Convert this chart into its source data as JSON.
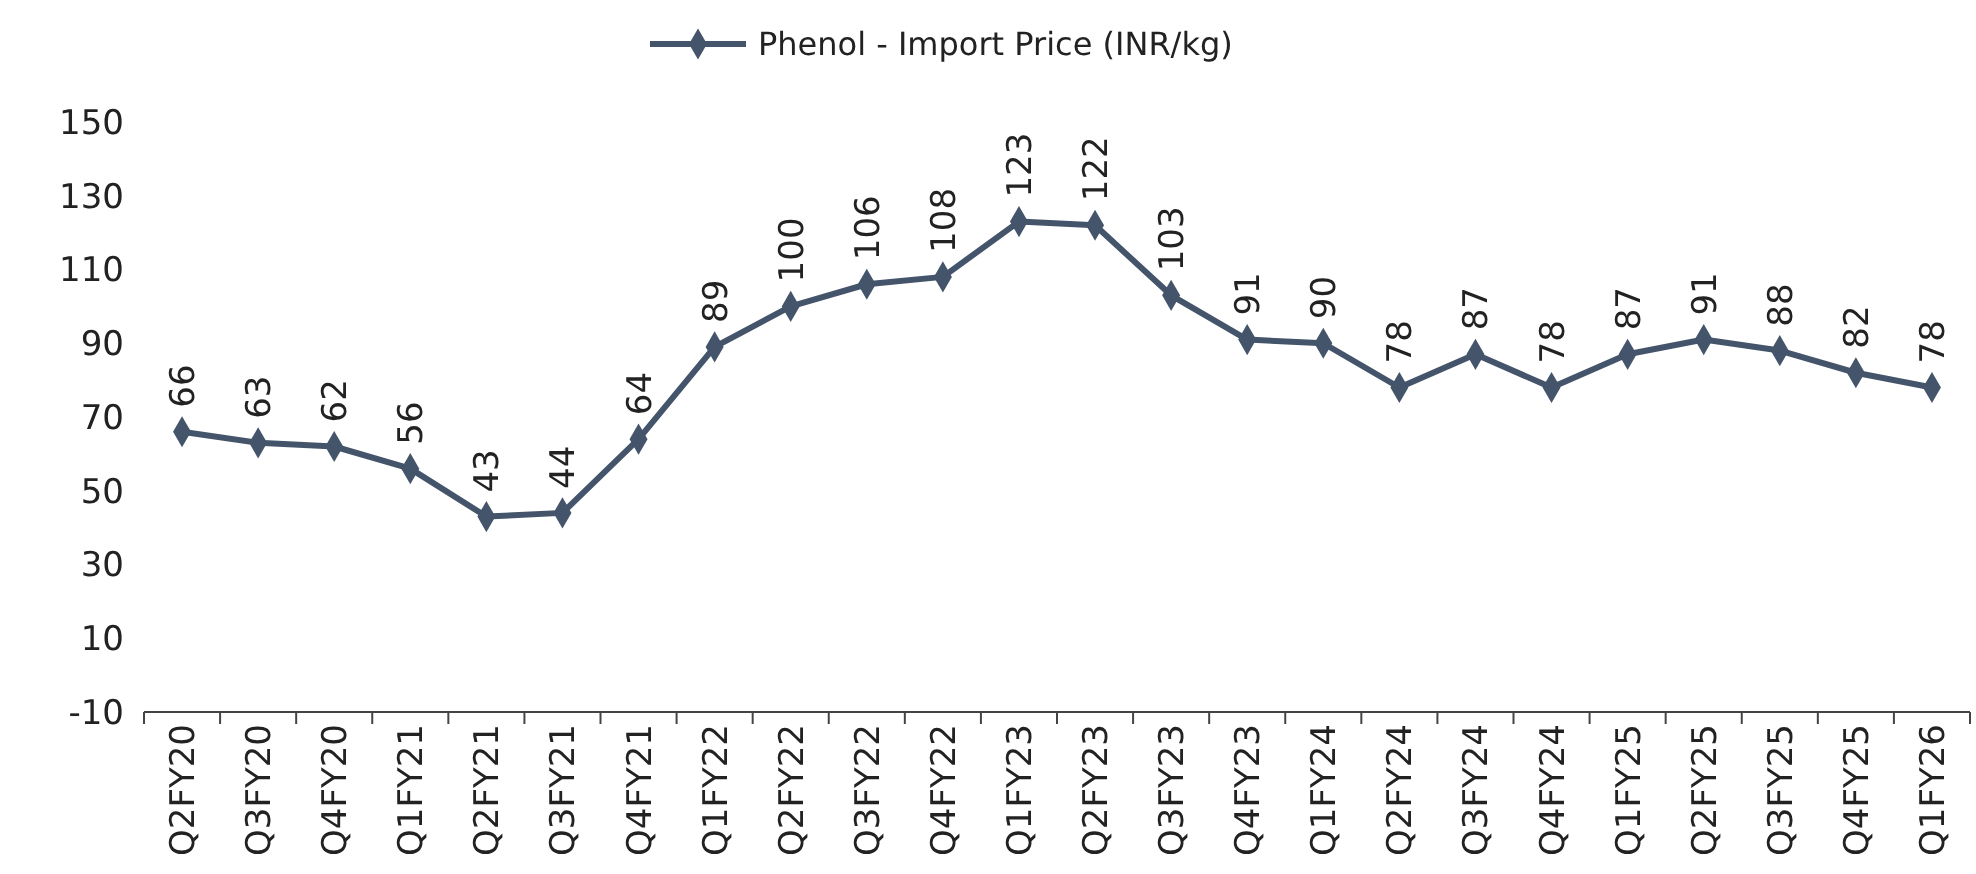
{
  "chart_data": {
    "type": "line",
    "categories": [
      "Q2FY20",
      "Q3FY20",
      "Q4FY20",
      "Q1FY21",
      "Q2FY21",
      "Q3FY21",
      "Q4FY21",
      "Q1FY22",
      "Q2FY22",
      "Q3FY22",
      "Q4FY22",
      "Q1FY23",
      "Q2FY23",
      "Q3FY23",
      "Q4FY23",
      "Q1FY24",
      "Q2FY24",
      "Q3FY24",
      "Q4FY24",
      "Q1FY25",
      "Q2FY25",
      "Q3FY25",
      "Q4FY25",
      "Q1FY26"
    ],
    "series": [
      {
        "name": "Phenol - Import Price (INR/kg)",
        "color": "#44546a",
        "values": [
          66,
          63,
          62,
          56,
          43,
          44,
          64,
          89,
          100,
          106,
          108,
          123,
          122,
          103,
          91,
          90,
          78,
          87,
          78,
          87,
          91,
          88,
          82,
          78
        ]
      }
    ],
    "ylim": [
      -10,
      150
    ],
    "yticks": [
      -10,
      10,
      30,
      50,
      70,
      90,
      110,
      130,
      150
    ],
    "grid": false,
    "legend": "top",
    "marker": "diamond",
    "line_style": "solid",
    "data_labels": true
  }
}
